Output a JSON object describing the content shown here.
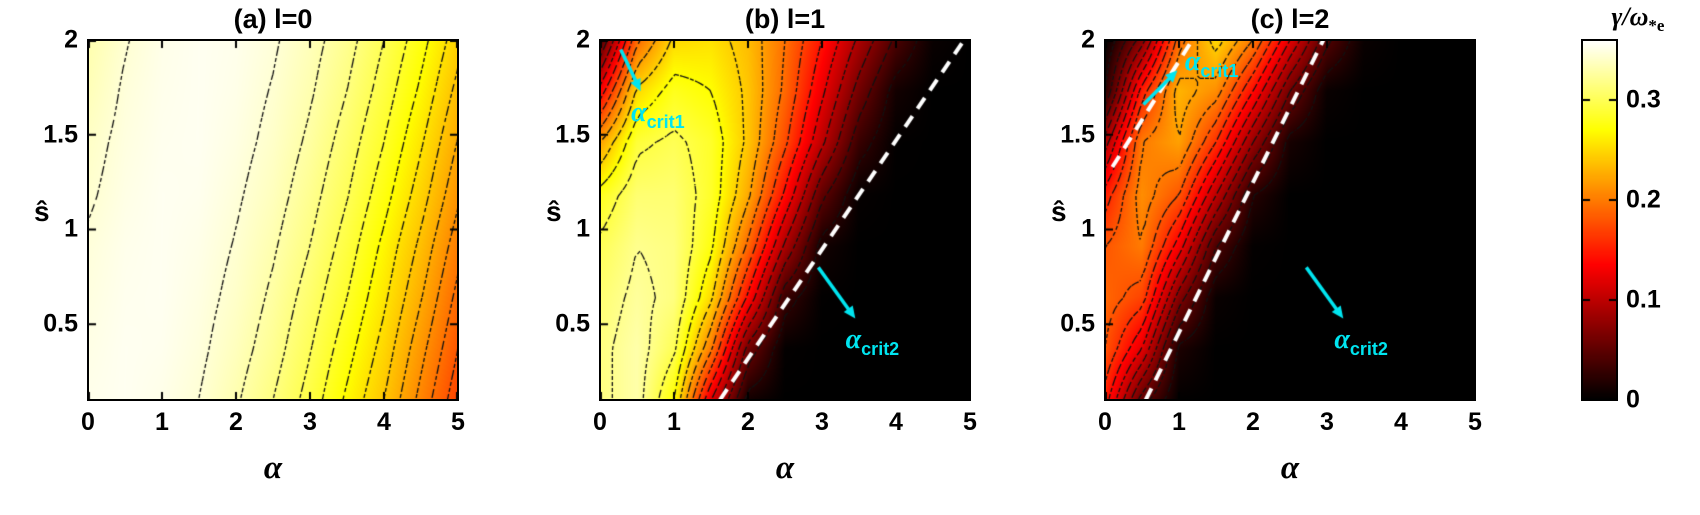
{
  "figure": {
    "background": "#ffffff",
    "accent_cyan": "#00e5f0",
    "contour_color": "#111111",
    "crit_line_color": "#ffffff",
    "colormap_stops": [
      [
        0,
        "#000000"
      ],
      [
        0.375,
        "#ff0000"
      ],
      [
        0.75,
        "#ffff00"
      ],
      [
        1,
        "#ffffff"
      ]
    ],
    "colorbar": {
      "title_num": "γ/ω",
      "title_sub": "*e",
      "ticks": [
        0,
        0.1,
        0.2,
        0.3
      ],
      "vmin": 0,
      "vmax": 0.36
    }
  },
  "chart_data": [
    {
      "type": "heatmap",
      "title": "(a) l=0",
      "xlabel": "α",
      "ylabel": "ŝ",
      "xlim": [
        0,
        5
      ],
      "ylim": [
        0.1,
        2
      ],
      "xticks": [
        0,
        1,
        2,
        3,
        4,
        5
      ],
      "yticks": [
        0.5,
        1,
        1.5,
        2
      ],
      "x": [
        0,
        0.5,
        1,
        1.5,
        2,
        2.5,
        3,
        3.5,
        4,
        4.5,
        5
      ],
      "y": [
        0.1,
        0.37,
        0.64,
        0.91,
        1.18,
        1.46,
        1.73,
        2.0
      ],
      "values": [
        [
          0.353,
          0.355,
          0.352,
          0.345,
          0.332,
          0.315,
          0.294,
          0.267,
          0.24,
          0.205,
          0.17
        ],
        [
          0.351,
          0.355,
          0.354,
          0.348,
          0.337,
          0.322,
          0.301,
          0.276,
          0.249,
          0.215,
          0.18
        ],
        [
          0.349,
          0.354,
          0.355,
          0.35,
          0.341,
          0.327,
          0.308,
          0.285,
          0.258,
          0.226,
          0.19
        ],
        [
          0.347,
          0.353,
          0.355,
          0.352,
          0.344,
          0.332,
          0.315,
          0.293,
          0.266,
          0.236,
          0.201
        ],
        [
          0.343,
          0.351,
          0.355,
          0.354,
          0.347,
          0.337,
          0.321,
          0.301,
          0.276,
          0.247,
          0.213
        ],
        [
          0.34,
          0.349,
          0.354,
          0.355,
          0.35,
          0.341,
          0.327,
          0.308,
          0.285,
          0.257,
          0.224
        ],
        [
          0.335,
          0.347,
          0.353,
          0.355,
          0.352,
          0.344,
          0.332,
          0.315,
          0.293,
          0.267,
          0.235
        ],
        [
          0.331,
          0.344,
          0.352,
          0.355,
          0.353,
          0.347,
          0.336,
          0.321,
          0.3,
          0.276,
          0.246
        ]
      ],
      "contour_levels": [
        0.18,
        0.195,
        0.21,
        0.225,
        0.24,
        0.255,
        0.27,
        0.285,
        0.3,
        0.315,
        0.33,
        0.345
      ],
      "crit_lines": [],
      "annotations": []
    },
    {
      "type": "heatmap",
      "title": "(b) l=1",
      "xlabel": "α",
      "ylabel": "ŝ",
      "xlim": [
        0,
        5
      ],
      "ylim": [
        0.1,
        2
      ],
      "xticks": [
        0,
        1,
        2,
        3,
        4,
        5
      ],
      "yticks": [
        0.5,
        1,
        1.5,
        2
      ],
      "x": [
        0,
        0.5,
        1,
        1.5,
        2,
        2.5,
        3,
        3.5,
        4,
        4.5,
        5
      ],
      "y": [
        0.1,
        0.37,
        0.64,
        0.91,
        1.18,
        1.46,
        1.73,
        2.0
      ],
      "values": [
        [
          0.315,
          0.33,
          0.27,
          0.12,
          0.01,
          0,
          0,
          0,
          0,
          0,
          0
        ],
        [
          0.315,
          0.33,
          0.3,
          0.2,
          0.06,
          0.002,
          0,
          0,
          0,
          0,
          0
        ],
        [
          0.31,
          0.325,
          0.315,
          0.25,
          0.14,
          0.03,
          0.001,
          0,
          0,
          0,
          0
        ],
        [
          0.3,
          0.32,
          0.315,
          0.275,
          0.19,
          0.09,
          0.01,
          0,
          0,
          0,
          0
        ],
        [
          0.28,
          0.31,
          0.31,
          0.285,
          0.225,
          0.14,
          0.05,
          0.003,
          0,
          0,
          0
        ],
        [
          0.22,
          0.29,
          0.3,
          0.285,
          0.24,
          0.175,
          0.1,
          0.03,
          0.001,
          0,
          0
        ],
        [
          0.13,
          0.25,
          0.28,
          0.27,
          0.24,
          0.19,
          0.125,
          0.06,
          0.01,
          0,
          0
        ],
        [
          0.04,
          0.19,
          0.25,
          0.255,
          0.235,
          0.195,
          0.145,
          0.09,
          0.04,
          0.005,
          0
        ]
      ],
      "contour_levels": [
        0.02,
        0.045,
        0.07,
        0.095,
        0.12,
        0.145,
        0.17,
        0.195,
        0.22,
        0.245,
        0.27,
        0.295,
        0.32
      ],
      "crit_lines": [
        {
          "x1": 1.62,
          "y1": 0.1,
          "x2": 4.92,
          "y2": 2.0
        }
      ],
      "annotations": [
        {
          "text_main": "α",
          "text_sub": "crit1",
          "arrow": [
            0.28,
            1.95,
            0.55,
            1.73
          ],
          "label_x": 0.42,
          "label_y": 1.7
        },
        {
          "text_main": "α",
          "text_sub": "crit2",
          "arrow": [
            2.95,
            0.8,
            3.45,
            0.53
          ],
          "label_x": 3.32,
          "label_y": 0.5
        }
      ]
    },
    {
      "type": "heatmap",
      "title": "(c) l=2",
      "xlabel": "α",
      "ylabel": "ŝ",
      "xlim": [
        0,
        5
      ],
      "ylim": [
        0.1,
        2
      ],
      "xticks": [
        0,
        1,
        2,
        3,
        4,
        5
      ],
      "yticks": [
        0.5,
        1,
        1.5,
        2
      ],
      "x": [
        0,
        0.5,
        1,
        1.5,
        2,
        2.5,
        3,
        3.5,
        4,
        4.5,
        5
      ],
      "y": [
        0.1,
        0.37,
        0.64,
        0.91,
        1.18,
        1.46,
        1.73,
        2.0
      ],
      "values": [
        [
          0.15,
          0.05,
          0.001,
          0,
          0,
          0,
          0,
          0,
          0,
          0,
          0
        ],
        [
          0.18,
          0.12,
          0.015,
          0,
          0,
          0,
          0,
          0,
          0,
          0,
          0
        ],
        [
          0.19,
          0.17,
          0.07,
          0.005,
          0,
          0,
          0,
          0,
          0,
          0,
          0
        ],
        [
          0.18,
          0.2,
          0.13,
          0.04,
          0.002,
          0,
          0,
          0,
          0,
          0,
          0
        ],
        [
          0.15,
          0.21,
          0.18,
          0.1,
          0.02,
          0,
          0,
          0,
          0,
          0,
          0
        ],
        [
          0.09,
          0.2,
          0.22,
          0.16,
          0.08,
          0.012,
          0,
          0,
          0,
          0,
          0
        ],
        [
          0.02,
          0.15,
          0.23,
          0.21,
          0.14,
          0.06,
          0.005,
          0,
          0,
          0,
          0
        ],
        [
          0.001,
          0.07,
          0.19,
          0.25,
          0.2,
          0.12,
          0.045,
          0.005,
          0,
          0,
          0
        ]
      ],
      "contour_levels": [
        0.02,
        0.04,
        0.06,
        0.08,
        0.1,
        0.12,
        0.14,
        0.16,
        0.18,
        0.2,
        0.22,
        0.24
      ],
      "crit_lines": [
        {
          "x1": 0.1,
          "y1": 1.33,
          "x2": 1.18,
          "y2": 2.0
        },
        {
          "x1": 0.55,
          "y1": 0.1,
          "x2": 2.95,
          "y2": 2.0
        }
      ],
      "annotations": [
        {
          "text_main": "α",
          "text_sub": "crit1",
          "arrow": [
            0.52,
            1.66,
            0.98,
            1.84
          ],
          "label_x": 1.08,
          "label_y": 1.97
        },
        {
          "text_main": "α",
          "text_sub": "crit2",
          "arrow": [
            2.72,
            0.8,
            3.22,
            0.53
          ],
          "label_x": 3.1,
          "label_y": 0.5
        }
      ]
    }
  ]
}
